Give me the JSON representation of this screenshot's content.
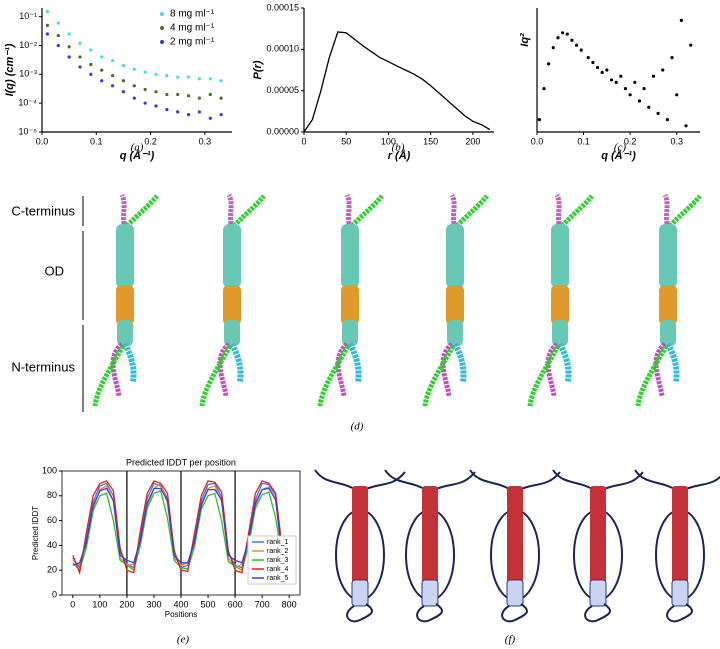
{
  "chart_data": [
    {
      "type": "scatter",
      "caption": "(a)",
      "xlabel": "q (Å⁻¹)",
      "ylabel": "I(q) (cm⁻¹)",
      "ylog": true,
      "legend": "upper right",
      "x": [
        0.01,
        0.03,
        0.05,
        0.07,
        0.09,
        0.11,
        0.13,
        0.15,
        0.17,
        0.19,
        0.21,
        0.23,
        0.25,
        0.27,
        0.29,
        0.31,
        0.33
      ],
      "series": [
        {
          "name": "8 mg ml⁻¹",
          "color": "#3fe0e0",
          "values": [
            0.15,
            0.06,
            0.025,
            0.012,
            0.007,
            0.004,
            0.003,
            0.002,
            0.0015,
            0.0012,
            0.001,
            0.0009,
            0.0008,
            0.0008,
            0.0007,
            0.0007,
            0.0006
          ]
        },
        {
          "name": "4 mg ml⁻¹",
          "color": "#4a6b1a",
          "values": [
            0.05,
            0.022,
            0.009,
            0.004,
            0.0022,
            0.0014,
            0.0009,
            0.0006,
            0.0004,
            0.0003,
            0.00025,
            0.0002,
            0.0002,
            0.00018,
            0.00015,
            0.0002,
            0.00015
          ]
        },
        {
          "name": "2 mg ml⁻¹",
          "color": "#3535e0",
          "values": [
            0.025,
            0.01,
            0.004,
            0.0018,
            0.001,
            0.0006,
            0.0004,
            0.00025,
            0.00015,
            0.0001,
            8e-05,
            6e-05,
            5e-05,
            4e-05,
            5e-05,
            3e-05,
            4e-05
          ]
        }
      ],
      "xlim": [
        0,
        0.35
      ],
      "xticks": [
        {
          "value": 0,
          "label": "0.0"
        },
        0.1,
        0.2,
        0.3
      ],
      "ylim": [
        1e-05,
        0.2
      ],
      "yticks": [
        {
          "value": 1e-05,
          "label": "10⁻⁵"
        },
        {
          "value": 0.0001,
          "label": "10⁻⁴"
        },
        {
          "value": 0.001,
          "label": "10⁻³"
        },
        {
          "value": 0.01,
          "label": "10⁻²"
        },
        {
          "value": 0.1,
          "label": "10⁻¹"
        }
      ]
    },
    {
      "type": "line",
      "caption": "(b)",
      "xlabel": "r (Å)",
      "ylabel": "P(r)",
      "color": "#000000",
      "x": [
        0,
        10,
        20,
        30,
        40,
        50,
        60,
        70,
        80,
        90,
        100,
        110,
        120,
        130,
        140,
        150,
        160,
        170,
        180,
        190,
        200,
        210,
        220
      ],
      "values": [
        0,
        1.5e-05,
        5e-05,
        9e-05,
        0.000121,
        0.00012,
        0.000112,
        0.000104,
        9.7e-05,
        9e-05,
        8.5e-05,
        8e-05,
        7.5e-05,
        7e-05,
        6.4e-05,
        5.6e-05,
        4.7e-05,
        3.8e-05,
        2.9e-05,
        2e-05,
        1.3e-05,
        9e-06,
        3e-06
      ],
      "xlim": [
        0,
        225
      ],
      "xticks": [
        0,
        50,
        100,
        150,
        200
      ],
      "ylim": [
        0,
        0.00015
      ],
      "yticks": [
        {
          "value": 0,
          "label": "0.00000"
        },
        {
          "value": 5e-05,
          "label": "0.00005"
        },
        {
          "value": 0.0001,
          "label": "0.00010"
        },
        {
          "value": 0.00015,
          "label": "0.00015"
        }
      ]
    },
    {
      "type": "scatter",
      "caption": "(c)",
      "xlabel": "q (Å⁻¹)",
      "ylabel": "Iq²",
      "color": "#000000",
      "x": [
        0.005,
        0.015,
        0.025,
        0.035,
        0.045,
        0.055,
        0.065,
        0.075,
        0.085,
        0.095,
        0.11,
        0.12,
        0.13,
        0.14,
        0.15,
        0.16,
        0.17,
        0.18,
        0.19,
        0.2,
        0.21,
        0.22,
        0.23,
        0.24,
        0.25,
        0.26,
        0.27,
        0.28,
        0.29,
        0.3,
        0.31,
        0.32,
        0.33
      ],
      "values": [
        0.1,
        0.35,
        0.55,
        0.68,
        0.76,
        0.8,
        0.79,
        0.74,
        0.7,
        0.66,
        0.6,
        0.56,
        0.52,
        0.48,
        0.5,
        0.42,
        0.4,
        0.45,
        0.35,
        0.3,
        0.4,
        0.25,
        0.35,
        0.2,
        0.45,
        0.15,
        0.5,
        0.1,
        0.6,
        0.3,
        0.9,
        0.05,
        0.7
      ],
      "xlim": [
        0,
        0.35
      ],
      "xticks": [
        {
          "value": 0,
          "label": "0.0"
        },
        0.1,
        0.2,
        0.3
      ],
      "ylim": [
        0,
        1
      ]
    },
    {
      "type": "line",
      "caption": "(e)",
      "title": "Predicted lDDT per position",
      "xlabel": "Positions",
      "ylabel": "Predicted lDDT",
      "legend": "lower right",
      "vlines": [
        200,
        400,
        600
      ],
      "x": [
        0,
        25,
        50,
        75,
        100,
        125,
        150,
        175,
        200,
        225,
        250,
        275,
        300,
        325,
        350,
        375,
        400,
        425,
        450,
        475,
        500,
        525,
        550,
        575,
        600,
        625,
        650,
        675,
        700,
        725,
        750,
        775,
        800
      ],
      "series": [
        {
          "name": "rank_1",
          "color": "#3b7fd9",
          "values": [
            30,
            22,
            45,
            75,
            88,
            90,
            80,
            35,
            25,
            22,
            48,
            78,
            90,
            88,
            78,
            32,
            22,
            24,
            46,
            76,
            89,
            90,
            79,
            34,
            24,
            22,
            47,
            77,
            90,
            89,
            80,
            33,
            25
          ]
        },
        {
          "name": "rank_2",
          "color": "#f08a20",
          "values": [
            28,
            24,
            40,
            70,
            85,
            88,
            76,
            30,
            24,
            25,
            42,
            72,
            86,
            90,
            74,
            30,
            24,
            26,
            42,
            71,
            86,
            88,
            75,
            30,
            22,
            25,
            43,
            72,
            85,
            87,
            76,
            28,
            24
          ]
        },
        {
          "name": "rank_3",
          "color": "#2cc02c",
          "values": [
            26,
            20,
            38,
            68,
            80,
            82,
            60,
            28,
            24,
            20,
            40,
            70,
            82,
            84,
            62,
            28,
            22,
            21,
            39,
            69,
            80,
            82,
            60,
            27,
            23,
            20,
            40,
            70,
            81,
            83,
            62,
            28,
            22
          ]
        },
        {
          "name": "rank_4",
          "color": "#e02020",
          "values": [
            32,
            18,
            50,
            80,
            90,
            92,
            84,
            38,
            20,
            18,
            52,
            82,
            92,
            90,
            82,
            36,
            20,
            19,
            50,
            80,
            92,
            91,
            83,
            36,
            20,
            18,
            50,
            82,
            92,
            90,
            82,
            36,
            22
          ]
        },
        {
          "name": "rank_5",
          "color": "#3a3ae8",
          "values": [
            24,
            26,
            42,
            72,
            84,
            86,
            76,
            32,
            28,
            26,
            44,
            74,
            86,
            86,
            76,
            32,
            26,
            26,
            43,
            73,
            85,
            85,
            77,
            32,
            28,
            26,
            44,
            74,
            85,
            86,
            77,
            30,
            26
          ]
        }
      ],
      "xlim": [
        -40,
        840
      ],
      "xticks": [
        0,
        100,
        200,
        300,
        400,
        500,
        600,
        700,
        800
      ],
      "ylim": [
        0,
        100
      ],
      "yticks": [
        0,
        20,
        40,
        60,
        80,
        100
      ]
    }
  ],
  "panel_d": {
    "labels": [
      "C-terminus",
      "OD",
      "N-terminus"
    ],
    "caption": "(d)"
  },
  "panel_f": {
    "caption": "(f)"
  }
}
